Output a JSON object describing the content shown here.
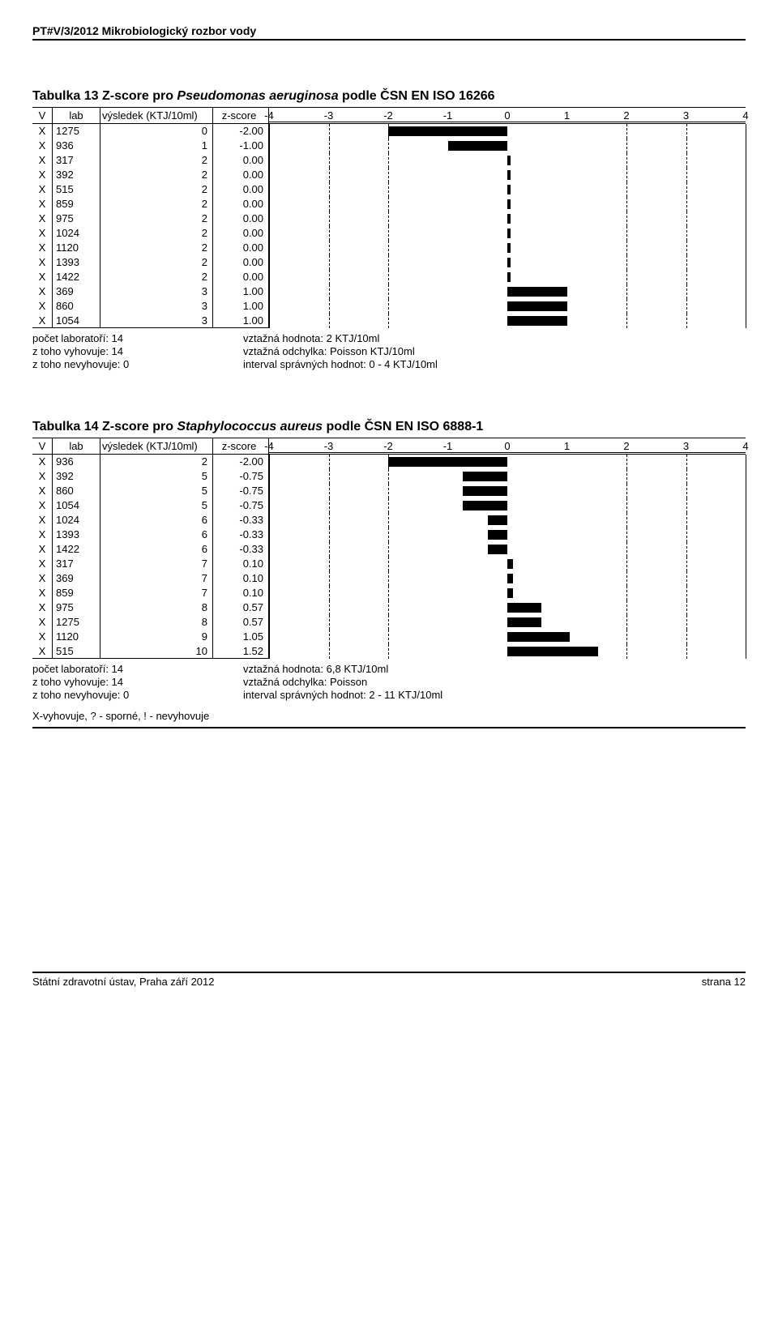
{
  "header": "PT#V/3/2012   Mikrobiologický rozbor vody",
  "chart_common": {
    "axis_min": -4,
    "axis_max": 4,
    "axis_ticks": [
      -4,
      -3,
      -2,
      -1,
      0,
      1,
      2,
      3,
      4
    ],
    "ref_lines_dashed": [
      -3,
      -2,
      2,
      3
    ],
    "ref_lines_solid": [
      -4,
      4
    ],
    "bar_color": "#000000",
    "dash_color": "#000000"
  },
  "table1": {
    "title_prefix": "Tabulka 13 Z-score pro ",
    "title_italic": "Pseudomonas aeruginosa",
    "title_suffix": " podle ČSN EN ISO 16266",
    "head": {
      "v": "V",
      "lab": "lab",
      "res": "výsledek (KTJ/10ml)",
      "zs": "z-score"
    },
    "rows": [
      {
        "v": "X",
        "lab": "1275",
        "res": "0",
        "zs": "-2.00",
        "z": -2.0
      },
      {
        "v": "X",
        "lab": "936",
        "res": "1",
        "zs": "-1.00",
        "z": -1.0
      },
      {
        "v": "X",
        "lab": "317",
        "res": "2",
        "zs": "0.00",
        "z": 0.0
      },
      {
        "v": "X",
        "lab": "392",
        "res": "2",
        "zs": "0.00",
        "z": 0.0
      },
      {
        "v": "X",
        "lab": "515",
        "res": "2",
        "zs": "0.00",
        "z": 0.0
      },
      {
        "v": "X",
        "lab": "859",
        "res": "2",
        "zs": "0.00",
        "z": 0.0
      },
      {
        "v": "X",
        "lab": "975",
        "res": "2",
        "zs": "0.00",
        "z": 0.0
      },
      {
        "v": "X",
        "lab": "1024",
        "res": "2",
        "zs": "0.00",
        "z": 0.0
      },
      {
        "v": "X",
        "lab": "1120",
        "res": "2",
        "zs": "0.00",
        "z": 0.0
      },
      {
        "v": "X",
        "lab": "1393",
        "res": "2",
        "zs": "0.00",
        "z": 0.0
      },
      {
        "v": "X",
        "lab": "1422",
        "res": "2",
        "zs": "0.00",
        "z": 0.0
      },
      {
        "v": "X",
        "lab": "369",
        "res": "3",
        "zs": "1.00",
        "z": 1.0
      },
      {
        "v": "X",
        "lab": "860",
        "res": "3",
        "zs": "1.00",
        "z": 1.0
      },
      {
        "v": "X",
        "lab": "1054",
        "res": "3",
        "zs": "1.00",
        "z": 1.0
      }
    ],
    "summary": {
      "l1": "počet laboratoří: 14",
      "l2": "z toho vyhovuje: 14",
      "l3": "z toho nevyhovuje: 0",
      "r1": "vztažná hodnota: 2 KTJ/10ml",
      "r2": "vztažná odchylka: Poisson KTJ/10ml",
      "r3": "interval správných hodnot: 0 - 4 KTJ/10ml"
    }
  },
  "table2": {
    "title_prefix": "Tabulka 14 Z-score pro ",
    "title_italic": "Staphylococcus aureus",
    "title_suffix": " podle ČSN EN ISO 6888-1",
    "head": {
      "v": "V",
      "lab": "lab",
      "res": "výsledek (KTJ/10ml)",
      "zs": "z-score"
    },
    "rows": [
      {
        "v": "X",
        "lab": "936",
        "res": "2",
        "zs": "-2.00",
        "z": -2.0
      },
      {
        "v": "X",
        "lab": "392",
        "res": "5",
        "zs": "-0.75",
        "z": -0.75
      },
      {
        "v": "X",
        "lab": "860",
        "res": "5",
        "zs": "-0.75",
        "z": -0.75
      },
      {
        "v": "X",
        "lab": "1054",
        "res": "5",
        "zs": "-0.75",
        "z": -0.75
      },
      {
        "v": "X",
        "lab": "1024",
        "res": "6",
        "zs": "-0.33",
        "z": -0.33
      },
      {
        "v": "X",
        "lab": "1393",
        "res": "6",
        "zs": "-0.33",
        "z": -0.33
      },
      {
        "v": "X",
        "lab": "1422",
        "res": "6",
        "zs": "-0.33",
        "z": -0.33
      },
      {
        "v": "X",
        "lab": "317",
        "res": "7",
        "zs": "0.10",
        "z": 0.1
      },
      {
        "v": "X",
        "lab": "369",
        "res": "7",
        "zs": "0.10",
        "z": 0.1
      },
      {
        "v": "X",
        "lab": "859",
        "res": "7",
        "zs": "0.10",
        "z": 0.1
      },
      {
        "v": "X",
        "lab": "975",
        "res": "8",
        "zs": "0.57",
        "z": 0.57
      },
      {
        "v": "X",
        "lab": "1275",
        "res": "8",
        "zs": "0.57",
        "z": 0.57
      },
      {
        "v": "X",
        "lab": "1120",
        "res": "9",
        "zs": "1.05",
        "z": 1.05
      },
      {
        "v": "X",
        "lab": "515",
        "res": "10",
        "zs": "1.52",
        "z": 1.52
      }
    ],
    "summary": {
      "l1": "počet laboratoří: 14",
      "l2": "z toho vyhovuje: 14",
      "l3": "z toho nevyhovuje: 0",
      "r1": "vztažná hodnota: 6,8 KTJ/10ml",
      "r2": "vztažná odchylka:  Poisson",
      "r3": "interval správných hodnot: 2 - 11 KTJ/10ml"
    }
  },
  "legend": "X-vyhovuje, ? - sporné, ! - nevyhovuje",
  "footer": {
    "left": "Státní zdravotní ústav, Praha září 2012",
    "right": "strana 12"
  }
}
